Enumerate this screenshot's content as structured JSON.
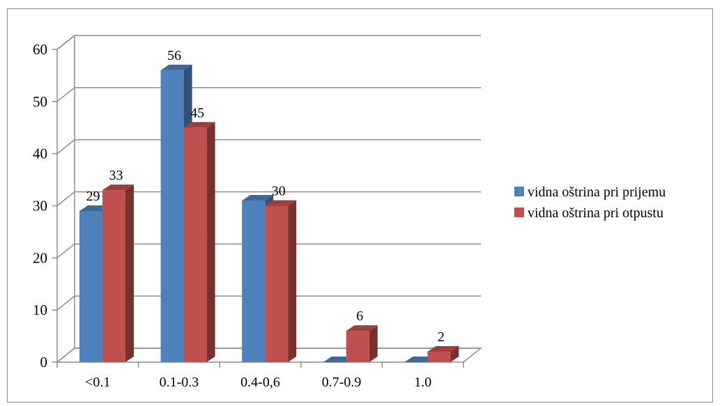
{
  "chart_data": {
    "type": "bar",
    "title": "",
    "xlabel": "",
    "ylabel": "",
    "categories": [
      "<0.1",
      "0.1-0.3",
      "0.4-0,6",
      "0.7-0.9",
      "1.0"
    ],
    "series": [
      {
        "name": "vidna oštrina pri prijemu",
        "values": [
          29,
          56,
          31,
          0,
          0
        ],
        "data_labels": [
          "29",
          "56",
          "",
          "",
          ""
        ],
        "color": "#4f81bd"
      },
      {
        "name": "vidna oštrina pri otpustu",
        "values": [
          33,
          45,
          30,
          6,
          2
        ],
        "data_labels": [
          "33",
          "45",
          "30",
          "6",
          "2"
        ],
        "color": "#c0504d"
      }
    ],
    "ylim": [
      0,
      60
    ],
    "yticks": [
      0,
      10,
      20,
      30,
      40,
      50,
      60
    ],
    "grid": true,
    "legend_position": "right",
    "style": "3d-clustered-column"
  }
}
